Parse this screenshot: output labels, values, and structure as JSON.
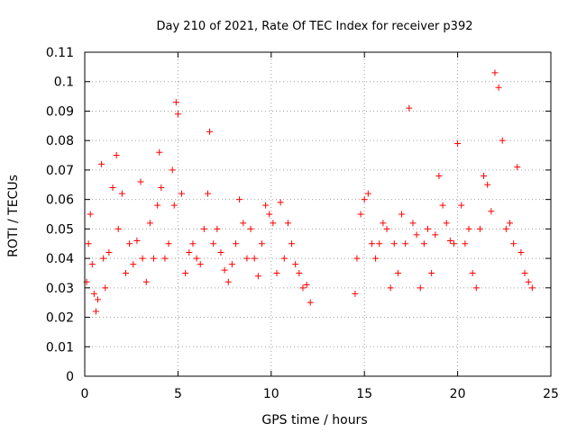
{
  "chart_data": {
    "type": "scatter",
    "title": "Day 210 of 2021, Rate Of TEC Index for receiver p392",
    "xlabel": "GPS time / hours",
    "ylabel": "ROTI / TECUs",
    "xlim": [
      0,
      25
    ],
    "ylim": [
      0,
      0.11
    ],
    "xticks": [
      "0",
      "5",
      "10",
      "15",
      "20",
      "25"
    ],
    "yticks": [
      "0",
      "0.01",
      "0.02",
      "0.03",
      "0.04",
      "0.05",
      "0.06",
      "0.07",
      "0.08",
      "0.09",
      "0.1",
      "0.11"
    ],
    "grid": true,
    "marker": "plus",
    "color": "#ff0000",
    "data_gap_hours": [
      12.2,
      14.5
    ],
    "series": [
      {
        "x": [
          0.1,
          0.2,
          0.3,
          0.4,
          0.5,
          0.6,
          0.7,
          0.9,
          1.0,
          1.1,
          1.3,
          1.5,
          1.7,
          1.8,
          2.0,
          2.2,
          2.4,
          2.6,
          2.8,
          3.0,
          3.1,
          3.3,
          3.5,
          3.7,
          3.9,
          4.0,
          4.1,
          4.3,
          4.5,
          4.7,
          4.8,
          4.9,
          5.0,
          5.2,
          5.4,
          5.6,
          5.8,
          6.0,
          6.2,
          6.4,
          6.6,
          6.7,
          6.9,
          7.1,
          7.3,
          7.5,
          7.7,
          7.9,
          8.1,
          8.3,
          8.5,
          8.7,
          8.9,
          9.1,
          9.3,
          9.5,
          9.7,
          9.9,
          10.1,
          10.3,
          10.5,
          10.7,
          10.9,
          11.1,
          11.3,
          11.5,
          11.7,
          11.9,
          12.1,
          14.5,
          14.6,
          14.8,
          15.0,
          15.2,
          15.4,
          15.6,
          15.8,
          16.0,
          16.2,
          16.4,
          16.6,
          16.8,
          17.0,
          17.2,
          17.4,
          17.6,
          17.8,
          18.0,
          18.2,
          18.4,
          18.6,
          18.8,
          19.0,
          19.2,
          19.4,
          19.6,
          19.8,
          20.0,
          20.2,
          20.4,
          20.6,
          20.8,
          21.0,
          21.2,
          21.4,
          21.6,
          21.8,
          22.0,
          22.2,
          22.4,
          22.6,
          22.8,
          23.0,
          23.2,
          23.4,
          23.6,
          23.8,
          24.0
        ],
        "y": [
          0.032,
          0.045,
          0.055,
          0.038,
          0.028,
          0.022,
          0.026,
          0.072,
          0.04,
          0.03,
          0.042,
          0.064,
          0.075,
          0.05,
          0.062,
          0.035,
          0.045,
          0.038,
          0.046,
          0.066,
          0.04,
          0.032,
          0.052,
          0.04,
          0.058,
          0.076,
          0.064,
          0.04,
          0.045,
          0.07,
          0.058,
          0.093,
          0.089,
          0.062,
          0.035,
          0.042,
          0.045,
          0.04,
          0.038,
          0.05,
          0.062,
          0.083,
          0.045,
          0.05,
          0.042,
          0.036,
          0.032,
          0.038,
          0.045,
          0.06,
          0.052,
          0.04,
          0.05,
          0.04,
          0.034,
          0.045,
          0.058,
          0.055,
          0.052,
          0.035,
          0.059,
          0.04,
          0.052,
          0.045,
          0.038,
          0.035,
          0.03,
          0.031,
          0.025,
          0.028,
          0.04,
          0.055,
          0.06,
          0.062,
          0.045,
          0.04,
          0.045,
          0.052,
          0.05,
          0.03,
          0.045,
          0.035,
          0.055,
          0.045,
          0.091,
          0.052,
          0.048,
          0.03,
          0.045,
          0.05,
          0.035,
          0.048,
          0.068,
          0.058,
          0.052,
          0.046,
          0.045,
          0.079,
          0.058,
          0.045,
          0.05,
          0.035,
          0.03,
          0.05,
          0.068,
          0.065,
          0.056,
          0.103,
          0.098,
          0.08,
          0.05,
          0.052,
          0.045,
          0.071,
          0.042,
          0.035,
          0.032,
          0.03
        ]
      }
    ]
  }
}
